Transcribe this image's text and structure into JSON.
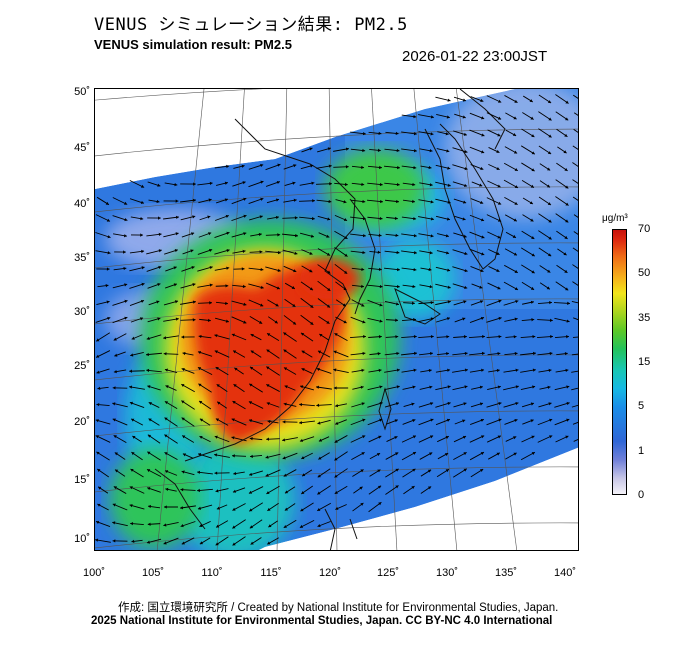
{
  "header": {
    "title_jp": "VENUS シミュレーション結果: PM2.5",
    "title_en": "VENUS simulation result: PM2.5",
    "timestamp": "2026-01-22 23:00JST"
  },
  "map": {
    "projection": "lambert-conic",
    "lon_labels": [
      "100˚",
      "105˚",
      "110˚",
      "115˚",
      "120˚",
      "125˚",
      "130˚",
      "135˚",
      "140˚"
    ],
    "lat_labels": [
      "50˚",
      "45˚",
      "40˚",
      "35˚",
      "30˚",
      "25˚",
      "20˚",
      "15˚",
      "10˚"
    ],
    "layers": [
      "pm2.5-concentration-field",
      "wind-vectors",
      "coastlines",
      "graticule"
    ]
  },
  "colorbar": {
    "unit": "μg/m³",
    "labels": [
      "70",
      "50",
      "35",
      "15",
      "5",
      "1",
      "0"
    ],
    "colors": {
      "c0": "#f4f2f8",
      "c1": "#6f7fd8",
      "c5": "#16b9e3",
      "c15": "#23c25a",
      "c35": "#f2e51b",
      "c50": "#ef6b16",
      "c70": "#c8120c"
    }
  },
  "credits": {
    "line1": "作成: 国立環境研究所 / Created by National Institute for Environmental Studies, Japan.",
    "line2": "2025 National Institute for Environmental Studies, Japan. CC BY-NC 4.0 International"
  }
}
